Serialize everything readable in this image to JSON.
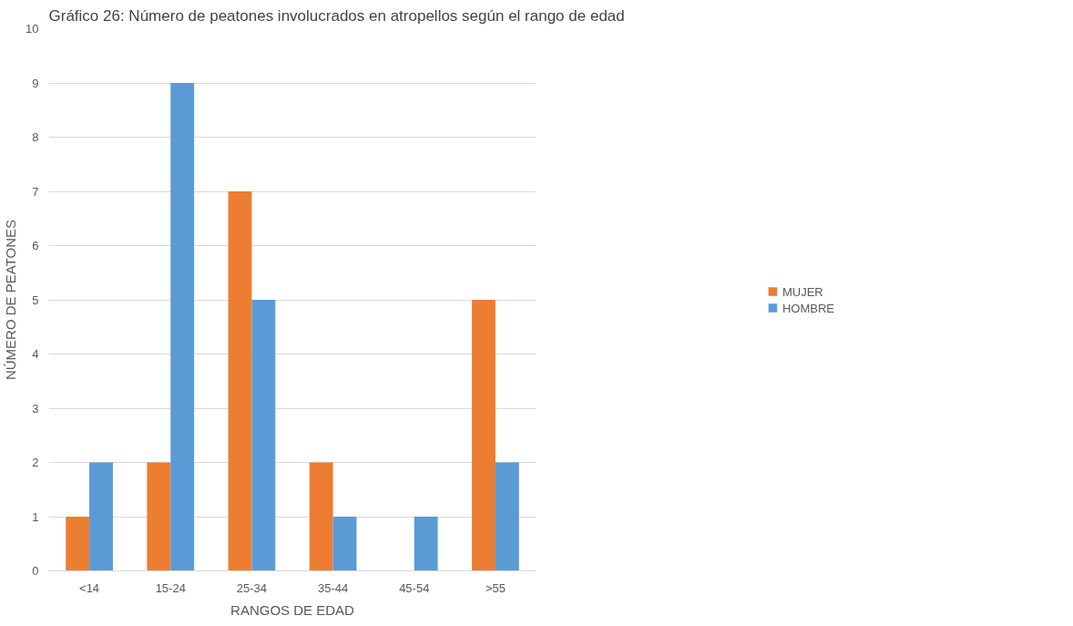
{
  "chart_data": {
    "type": "bar",
    "title": "Gráfico 26: Número de peatones involucrados en atropellos según el rango de edad",
    "xlabel": "RANGOS DE EDAD",
    "ylabel": "NÚMERO DE PEATONES",
    "categories": [
      "<14",
      "15-24",
      "25-34",
      "35-44",
      "45-54",
      ">55"
    ],
    "series": [
      {
        "name": "MUJER",
        "color": "#ed7d31",
        "values": [
          1,
          2,
          7,
          2,
          0,
          5
        ]
      },
      {
        "name": "HOMBRE",
        "color": "#5b9bd5",
        "values": [
          2,
          9,
          5,
          1,
          1,
          2
        ]
      }
    ],
    "ylim": [
      0,
      10
    ],
    "yticks": [
      0,
      1,
      2,
      3,
      4,
      5,
      6,
      7,
      8,
      9,
      10
    ],
    "grid": "y",
    "legend": "right"
  }
}
